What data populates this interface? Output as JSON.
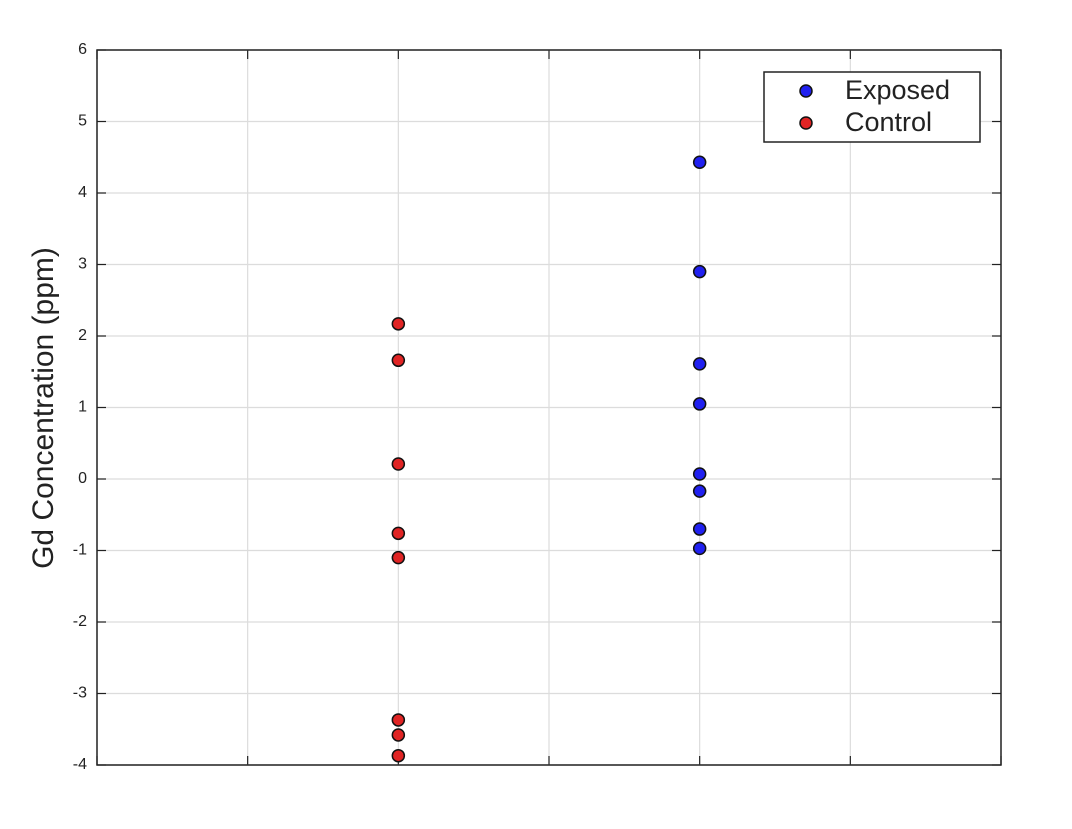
{
  "chart_data": {
    "type": "scatter",
    "y_label": "Gd Concentration (ppm)",
    "xlim": [
      0,
      3
    ],
    "xticks": [
      0,
      0.5,
      1,
      1.5,
      2,
      2.5,
      3
    ],
    "ylim": [
      -4,
      6
    ],
    "yticks": [
      -4,
      -3,
      -2,
      -1,
      0,
      1,
      2,
      3,
      4,
      5,
      6
    ],
    "grid": true,
    "legend": "upper right",
    "series": [
      {
        "name": "Exposed",
        "color": "#2020f0",
        "x": [
          2,
          2,
          2,
          2,
          2,
          2,
          2,
          2
        ],
        "values": [
          4.43,
          2.9,
          1.61,
          1.05,
          0.07,
          -0.17,
          -0.7,
          -0.97
        ]
      },
      {
        "name": "Control",
        "color": "#e02424",
        "x": [
          1,
          1,
          1,
          1,
          1,
          1,
          1,
          1
        ],
        "values": [
          2.17,
          1.66,
          0.21,
          -0.76,
          -1.1,
          -3.37,
          -3.58,
          -3.87
        ]
      }
    ]
  }
}
